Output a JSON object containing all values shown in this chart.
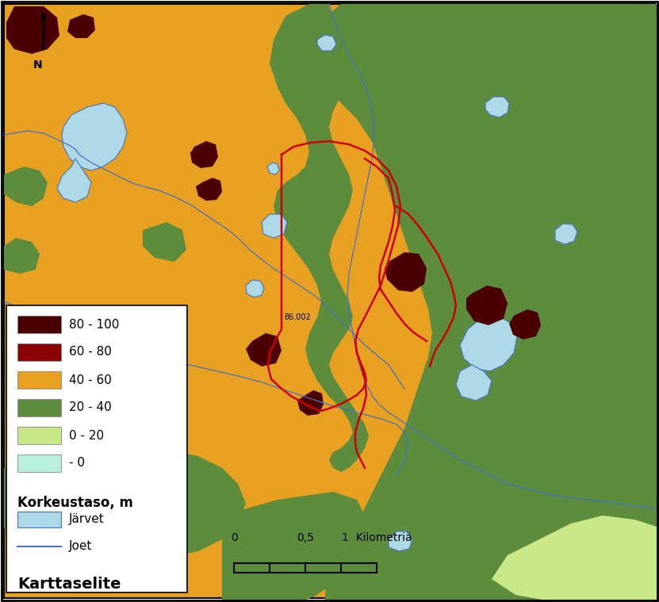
{
  "colors": {
    "below_0": "#B8F0E0",
    "c0_20": "#C8E888",
    "c20_40": "#5C8C3C",
    "c40_60": "#E8A020",
    "c60_80": "#8B0000",
    "c80_100": "#4A0000",
    "lake": "#ADD8E6",
    "river": "#4472C4",
    "red_line": "#CC0000",
    "border": "#888888",
    "bg": "#E8A020"
  },
  "legend": {
    "title": "Karttaselite",
    "joet": "Joet",
    "jarvet": "Järvet",
    "elev_title": "Korkeustaso, m",
    "levels": [
      "- 0",
      "0 - 20",
      "20 - 40",
      "40 - 60",
      "60 - 80",
      "80 - 100"
    ]
  },
  "annotation": "86.002"
}
